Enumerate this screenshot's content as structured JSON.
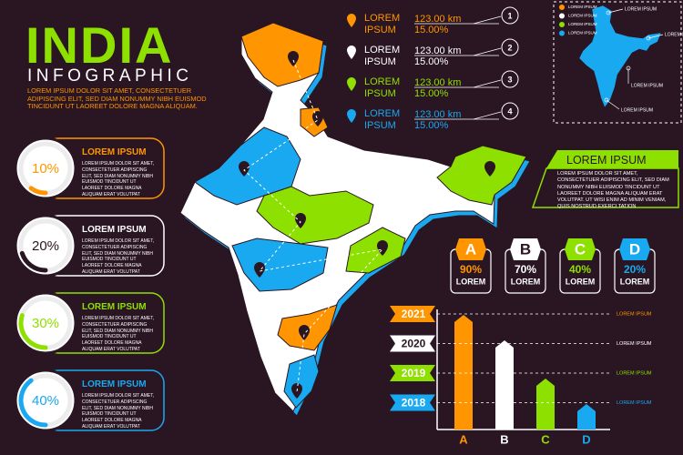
{
  "header": {
    "title": "INDIA",
    "subtitle": "INFOGRAPHIC",
    "text": "LOREM IPSUM DOLOR SIT AMET, CONSECTETUER ADIPISCING ELIT, SED DIAM NONUMMY NIBH EUISMOD TINCIDUNT UT LAOREET DOLORE MAGNA ALIQUAM."
  },
  "cards": [
    {
      "percent": 10,
      "label": "10%",
      "title": "LOREM IPSUM",
      "text": "LOREM IPSUM DOLOR SIT AMET, CONSECTETUER ADIPISCING ELIT, SED DIAM NONUMMY NIBH EUISMOD TINCIDUNT UT LAOREET DOLORE MAGNA ALIQUAM ERAT VOLUTPAT",
      "color": "#ff9500"
    },
    {
      "percent": 20,
      "label": "20%",
      "title": "LOREM IPSUM",
      "text": "LOREM IPSUM DOLOR SIT AMET, CONSECTETUER ADIPISCING ELIT, SED DIAM NONUMMY NIBH EUISMOD TINCIDUNT UT LAOREET DOLORE MAGNA ALIQUAM ERAT VOLUTPAT",
      "color": "#ffffff"
    },
    {
      "percent": 30,
      "label": "30%",
      "title": "LOREM IPSUM",
      "text": "LOREM IPSUM DOLOR SIT AMET, CONSECTETUER ADIPISCING ELIT, SED DIAM NONUMMY NIBH EUISMOD TINCIDUNT UT LAOREET DOLORE MAGNA ALIQUAM ERAT VOLUTPAT",
      "color": "#8ee000"
    },
    {
      "percent": 40,
      "label": "40%",
      "title": "LOREM IPSUM",
      "text": "LOREM IPSUM DOLOR SIT AMET, CONSECTETUER ADIPISCING ELIT, SED DIAM NONUMMY NIBH EUISMOD TINCIDUNT UT LAOREET DOLORE MAGNA ALIQUAM ERAT VOLUTPAT",
      "color": "#19a9f0"
    }
  ],
  "locations": [
    {
      "number": "1",
      "name": "LOREM IPSUM",
      "distance": "123.00 km",
      "share": "15.00%",
      "color": "#ff9500"
    },
    {
      "number": "2",
      "name": "LOREM IPSUM",
      "distance": "123.00 km",
      "share": "15.00%",
      "color": "#ffffff"
    },
    {
      "number": "3",
      "name": "LOREM IPSUM",
      "distance": "123.00 km",
      "share": "15.00%",
      "color": "#8ee000"
    },
    {
      "number": "4",
      "name": "LOREM IPSUM",
      "distance": "123.00 km",
      "share": "15.00%",
      "color": "#19a9f0"
    }
  ],
  "mini_map": {
    "legend": [
      {
        "label": "LOREM IPSUM",
        "color": "#ff9500"
      },
      {
        "label": "LOREM IPSUM",
        "color": "#ffffff"
      },
      {
        "label": "LOREM IPSUM",
        "color": "#8ee000"
      },
      {
        "label": "LOREM IPSUM",
        "color": "#19a9f0"
      }
    ],
    "labels": [
      "LOREM IPSUM",
      "LOREM IPSUM",
      "LOREM IPSUM",
      "LOREM IPSUM"
    ]
  },
  "info_box": {
    "title": "LOREM IPSUM",
    "text": "LOREM IPSUM DOLOR SIT AMET, CONSECTETUER ADIPISCING ELIT, SED DIAM NONUMMY NIBH EUISMOD TINCIDUNT UT LAOREET DOLORE MAGNA ALIQUAM ERAT VOLUTPAT. UT WISI ENIM AD MINIM VENIAM, QUIS NOSTRUD EXERCI TATION"
  },
  "badges": [
    {
      "letter": "A",
      "value": 90,
      "label": "90%",
      "caption": "LOREM",
      "color": "#ff9500"
    },
    {
      "letter": "B",
      "value": 70,
      "label": "70%",
      "caption": "LOREM",
      "color": "#ffffff"
    },
    {
      "letter": "C",
      "value": 40,
      "label": "40%",
      "caption": "LOREM",
      "color": "#8ee000"
    },
    {
      "letter": "D",
      "value": 20,
      "label": "20%",
      "caption": "LOREM",
      "color": "#19a9f0"
    }
  ],
  "years": [
    {
      "year": "2021",
      "label": "LOREM IPSUM",
      "color": "#ff9500"
    },
    {
      "year": "2020",
      "label": "LOREM IPSUM",
      "color": "#ffffff"
    },
    {
      "year": "2019",
      "label": "LOREM IPSUM",
      "color": "#8ee000"
    },
    {
      "year": "2018",
      "label": "LOREM IPSUM",
      "color": "#19a9f0"
    }
  ]
}
